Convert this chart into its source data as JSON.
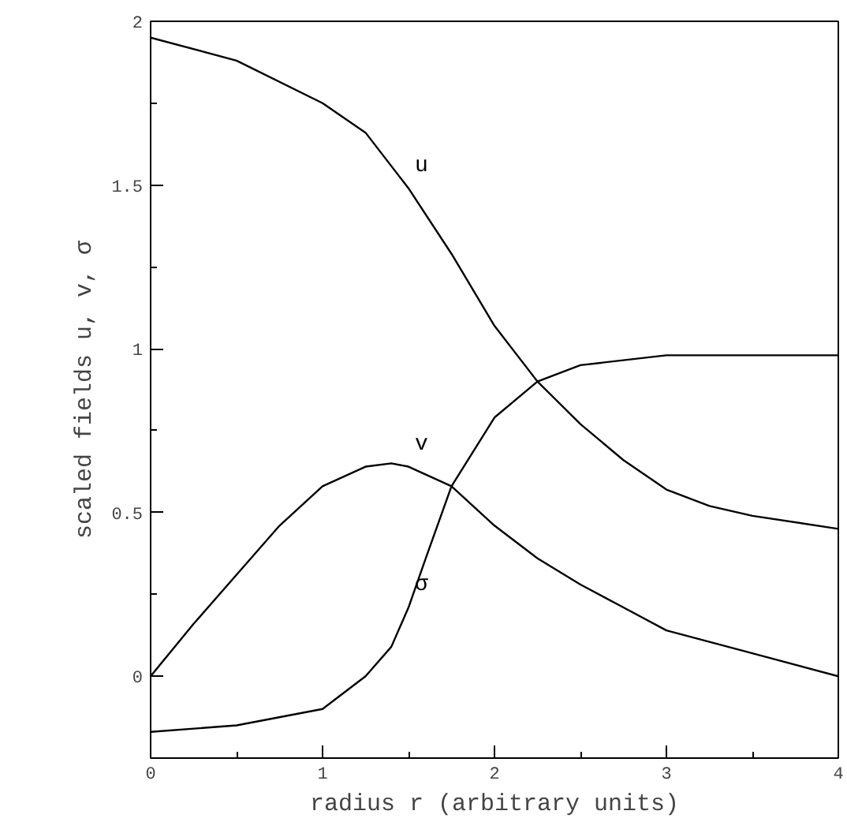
{
  "chart_data": {
    "type": "line",
    "xlabel": "radius r (arbitrary units)",
    "ylabel": "scaled fields u, v, σ",
    "xlim": [
      0,
      4
    ],
    "ylim": [
      -0.25,
      2
    ],
    "xticks": [
      0,
      1,
      2,
      3,
      4
    ],
    "yticks": [
      0,
      0.5,
      1,
      1.5,
      2
    ],
    "grid": false,
    "series": [
      {
        "name": "u",
        "color": "#000000",
        "x": [
          0,
          0.5,
          1,
          1.25,
          1.5,
          1.75,
          2,
          2.25,
          2.5,
          2.75,
          3,
          3.25,
          3.5,
          4
        ],
        "values": [
          1.95,
          1.88,
          1.75,
          1.66,
          1.49,
          1.29,
          1.07,
          0.9,
          0.77,
          0.66,
          0.57,
          0.52,
          0.49,
          0.45
        ]
      },
      {
        "name": "v",
        "color": "#000000",
        "x": [
          0,
          0.25,
          0.5,
          0.75,
          1,
          1.25,
          1.4,
          1.5,
          1.75,
          2,
          2.25,
          2.5,
          2.75,
          3,
          3.5,
          4
        ],
        "values": [
          0,
          0.16,
          0.31,
          0.46,
          0.58,
          0.64,
          0.65,
          0.64,
          0.58,
          0.46,
          0.36,
          0.28,
          0.21,
          0.14,
          0.07,
          0
        ]
      },
      {
        "name": "σ",
        "color": "#000000",
        "x": [
          0,
          0.5,
          1,
          1.25,
          1.4,
          1.5,
          1.6,
          1.75,
          2,
          2.25,
          2.5,
          3,
          4
        ],
        "values": [
          -0.17,
          -0.15,
          -0.1,
          0,
          0.09,
          0.21,
          0.36,
          0.58,
          0.79,
          0.9,
          0.95,
          0.98,
          0.98
        ]
      }
    ]
  }
}
